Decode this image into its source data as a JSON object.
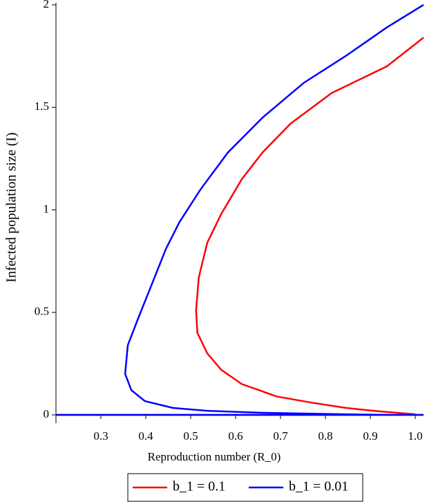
{
  "chart_data": {
    "type": "line",
    "x_label": "Reproduction number (R_0)",
    "y_label": "Infected population size (I)",
    "xlim": [
      0.2,
      1.0185
    ],
    "ylim": [
      0,
      2
    ],
    "xticks": [
      0.3,
      0.4,
      0.5,
      0.6,
      0.7,
      0.8,
      0.9,
      {
        "value": 1,
        "label": "1.0"
      }
    ],
    "yticks": [
      0,
      0.5,
      1,
      1.5,
      2
    ],
    "legend": "bottom",
    "series": [
      {
        "name": "b_1 = 0.1",
        "color": "#ff0000",
        "x": [
          1.0185,
          0.937,
          0.814,
          0.722,
          0.66,
          0.614,
          0.568,
          0.537,
          0.518,
          0.512,
          0.515,
          0.537,
          0.568,
          0.614,
          0.691,
          0.768,
          0.845,
          0.922,
          1.0,
          null,
          0.2,
          1.0185
        ],
        "values": [
          1.84,
          1.7,
          1.57,
          1.42,
          1.28,
          1.15,
          0.98,
          0.84,
          0.67,
          0.51,
          0.4,
          0.3,
          0.22,
          0.15,
          0.09,
          0.06,
          0.034,
          0.017,
          0.003,
          null,
          0,
          0
        ]
      },
      {
        "name": "b_1 = 0.01",
        "color": "#0000ff",
        "x": [
          1.0185,
          0.937,
          0.845,
          0.752,
          0.66,
          0.583,
          0.522,
          0.475,
          0.445,
          0.414,
          0.383,
          0.36,
          0.354,
          0.368,
          0.398,
          0.46,
          0.537,
          0.66,
          0.845,
          0.937,
          null,
          0.2,
          1.0185
        ],
        "values": [
          2.0,
          1.89,
          1.75,
          1.62,
          1.45,
          1.28,
          1.1,
          0.94,
          0.81,
          0.64,
          0.47,
          0.34,
          0.2,
          0.12,
          0.067,
          0.034,
          0.02,
          0.01,
          0.003,
          0,
          null,
          0,
          0
        ]
      }
    ]
  }
}
